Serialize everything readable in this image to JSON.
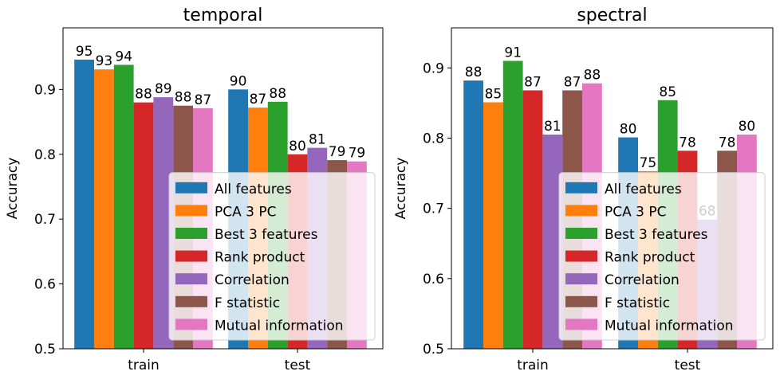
{
  "chart_data": [
    {
      "type": "bar",
      "title": "temporal",
      "ylabel": "Accuracy",
      "xlabel": "",
      "ylim": [
        0.5,
        0.995
      ],
      "yticks": [
        0.5,
        0.6,
        0.7,
        0.8,
        0.9
      ],
      "ytick_labels": [
        "0.5",
        "0.6",
        "0.7",
        "0.8",
        "0.9"
      ],
      "categories": [
        "train",
        "test"
      ],
      "legend_position": "lower right",
      "series": [
        {
          "name": "All features",
          "color": "#1f77b4",
          "values": [
            0.946,
            0.9
          ],
          "labels": [
            "95",
            "90"
          ]
        },
        {
          "name": "PCA 3 PC",
          "color": "#ff7f0e",
          "values": [
            0.931,
            0.872
          ],
          "labels": [
            "93",
            "87"
          ]
        },
        {
          "name": "Best 3 features",
          "color": "#2ca02c",
          "values": [
            0.938,
            0.881
          ],
          "labels": [
            "94",
            "88"
          ]
        },
        {
          "name": "Rank product",
          "color": "#d62728",
          "values": [
            0.88,
            0.8
          ],
          "labels": [
            "88",
            "80"
          ]
        },
        {
          "name": "Correlation",
          "color": "#9467bd",
          "values": [
            0.888,
            0.81
          ],
          "labels": [
            "89",
            "81"
          ]
        },
        {
          "name": "F statistic",
          "color": "#8c564b",
          "values": [
            0.875,
            0.791
          ],
          "labels": [
            "88",
            "79"
          ]
        },
        {
          "name": "Mutual information",
          "color": "#e377c2",
          "values": [
            0.871,
            0.789
          ],
          "labels": [
            "87",
            "79"
          ]
        }
      ]
    },
    {
      "type": "bar",
      "title": "spectral",
      "ylabel": "Accuracy",
      "xlabel": "",
      "ylim": [
        0.5,
        0.957
      ],
      "yticks": [
        0.5,
        0.6,
        0.7,
        0.8,
        0.9
      ],
      "ytick_labels": [
        "0.5",
        "0.6",
        "0.7",
        "0.8",
        "0.9"
      ],
      "categories": [
        "train",
        "test"
      ],
      "legend_position": "lower right",
      "series": [
        {
          "name": "All features",
          "color": "#1f77b4",
          "values": [
            0.882,
            0.801
          ],
          "labels": [
            "88",
            "80"
          ]
        },
        {
          "name": "PCA 3 PC",
          "color": "#ff7f0e",
          "values": [
            0.851,
            0.753
          ],
          "labels": [
            "85",
            "75"
          ]
        },
        {
          "name": "Best 3 features",
          "color": "#2ca02c",
          "values": [
            0.91,
            0.854
          ],
          "labels": [
            "91",
            "85"
          ]
        },
        {
          "name": "Rank product",
          "color": "#d62728",
          "values": [
            0.868,
            0.782
          ],
          "labels": [
            "87",
            "78"
          ]
        },
        {
          "name": "Correlation",
          "color": "#9467bd",
          "values": [
            0.805,
            0.684
          ],
          "labels": [
            "81",
            "68"
          ]
        },
        {
          "name": "F statistic",
          "color": "#8c564b",
          "values": [
            0.868,
            0.782
          ],
          "labels": [
            "87",
            "78"
          ]
        },
        {
          "name": "Mutual information",
          "color": "#e377c2",
          "values": [
            0.878,
            0.805
          ],
          "labels": [
            "88",
            "80"
          ]
        }
      ]
    }
  ]
}
